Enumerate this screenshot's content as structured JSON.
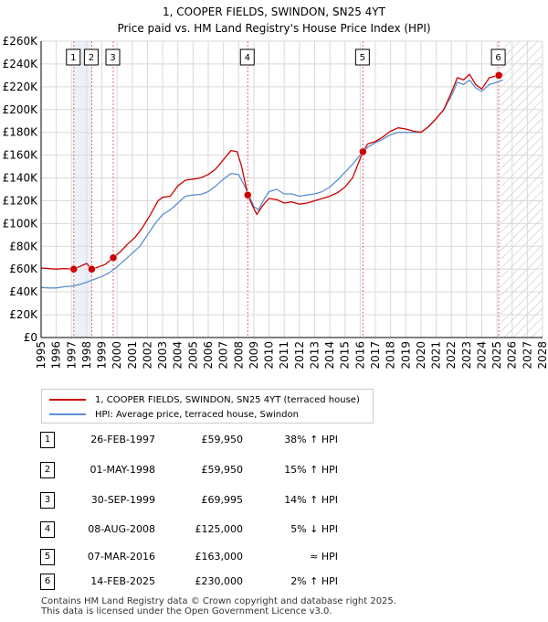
{
  "chart_data": {
    "type": "line",
    "title": "1, COOPER FIELDS, SWINDON, SN25 4YT",
    "subtitle": "Price paid vs. HM Land Registry's House Price Index (HPI)",
    "xlim": [
      1995,
      2028
    ],
    "ylim": [
      0,
      260000
    ],
    "x_ticks": [
      1995,
      1996,
      1997,
      1998,
      1999,
      2000,
      2001,
      2002,
      2003,
      2004,
      2005,
      2006,
      2007,
      2008,
      2009,
      2010,
      2011,
      2012,
      2013,
      2014,
      2015,
      2016,
      2017,
      2018,
      2019,
      2020,
      2021,
      2022,
      2023,
      2024,
      2025,
      2026,
      2027,
      2028
    ],
    "y_ticks": [
      0,
      20000,
      40000,
      60000,
      80000,
      100000,
      120000,
      140000,
      160000,
      180000,
      200000,
      220000,
      240000,
      260000
    ],
    "y_tick_labels": [
      "£0",
      "£20K",
      "£40K",
      "£60K",
      "£80K",
      "£100K",
      "£120K",
      "£140K",
      "£160K",
      "£180K",
      "£200K",
      "£220K",
      "£240K",
      "£260K"
    ],
    "future_start": 2025.25,
    "series": [
      {
        "name": "1, COOPER FIELDS, SWINDON, SN25 4YT (terraced house)",
        "color": "#cc0000",
        "points": [
          [
            1995.0,
            61000
          ],
          [
            1995.5,
            60500
          ],
          [
            1996.0,
            60000
          ],
          [
            1996.5,
            60500
          ],
          [
            1997.15,
            59950
          ],
          [
            1997.5,
            62000
          ],
          [
            1998.0,
            65000
          ],
          [
            1998.33,
            59950
          ],
          [
            1998.8,
            62000
          ],
          [
            1999.2,
            64000
          ],
          [
            1999.75,
            69995
          ],
          [
            2000.2,
            75000
          ],
          [
            2000.7,
            82000
          ],
          [
            2001.2,
            88000
          ],
          [
            2001.7,
            97000
          ],
          [
            2002.2,
            108000
          ],
          [
            2002.7,
            120000
          ],
          [
            2003.0,
            123000
          ],
          [
            2003.5,
            124000
          ],
          [
            2004.0,
            133000
          ],
          [
            2004.5,
            138000
          ],
          [
            2005.0,
            139000
          ],
          [
            2005.5,
            140000
          ],
          [
            2006.0,
            143000
          ],
          [
            2006.5,
            148000
          ],
          [
            2007.0,
            156000
          ],
          [
            2007.5,
            164000
          ],
          [
            2007.9,
            163000
          ],
          [
            2008.2,
            150000
          ],
          [
            2008.6,
            125000
          ],
          [
            2008.9,
            116000
          ],
          [
            2009.2,
            108000
          ],
          [
            2009.6,
            116000
          ],
          [
            2010.0,
            122000
          ],
          [
            2010.5,
            121000
          ],
          [
            2011.0,
            118000
          ],
          [
            2011.5,
            119000
          ],
          [
            2012.0,
            117000
          ],
          [
            2012.5,
            118000
          ],
          [
            2013.0,
            120000
          ],
          [
            2013.5,
            122000
          ],
          [
            2014.0,
            124000
          ],
          [
            2014.5,
            127000
          ],
          [
            2015.0,
            132000
          ],
          [
            2015.5,
            140000
          ],
          [
            2016.18,
            163000
          ],
          [
            2016.5,
            170000
          ],
          [
            2017.0,
            172000
          ],
          [
            2017.5,
            176000
          ],
          [
            2018.0,
            181000
          ],
          [
            2018.5,
            184000
          ],
          [
            2019.0,
            183000
          ],
          [
            2019.5,
            181000
          ],
          [
            2020.0,
            180000
          ],
          [
            2020.5,
            185000
          ],
          [
            2021.0,
            192000
          ],
          [
            2021.5,
            200000
          ],
          [
            2022.0,
            215000
          ],
          [
            2022.4,
            228000
          ],
          [
            2022.8,
            226000
          ],
          [
            2023.2,
            231000
          ],
          [
            2023.6,
            222000
          ],
          [
            2024.0,
            218000
          ],
          [
            2024.5,
            228000
          ],
          [
            2025.12,
            230000
          ],
          [
            2025.4,
            231000
          ]
        ]
      },
      {
        "name": "HPI: Average price, terraced house, Swindon",
        "color": "#5b8fd0",
        "points": [
          [
            1995.0,
            44000
          ],
          [
            1995.5,
            43500
          ],
          [
            1996.0,
            43500
          ],
          [
            1996.5,
            44500
          ],
          [
            1997.0,
            45000
          ],
          [
            1997.5,
            46500
          ],
          [
            1998.0,
            48500
          ],
          [
            1998.5,
            51000
          ],
          [
            1999.0,
            53500
          ],
          [
            1999.5,
            57000
          ],
          [
            2000.0,
            62000
          ],
          [
            2000.5,
            68000
          ],
          [
            2001.0,
            74000
          ],
          [
            2001.5,
            80000
          ],
          [
            2002.0,
            90000
          ],
          [
            2002.5,
            100000
          ],
          [
            2003.0,
            108000
          ],
          [
            2003.5,
            112000
          ],
          [
            2004.0,
            118000
          ],
          [
            2004.5,
            124000
          ],
          [
            2005.0,
            125000
          ],
          [
            2005.5,
            125500
          ],
          [
            2006.0,
            128000
          ],
          [
            2006.5,
            133000
          ],
          [
            2007.0,
            139000
          ],
          [
            2007.5,
            144000
          ],
          [
            2008.0,
            143000
          ],
          [
            2008.5,
            130000
          ],
          [
            2009.0,
            115000
          ],
          [
            2009.3,
            112000
          ],
          [
            2009.7,
            122000
          ],
          [
            2010.0,
            128000
          ],
          [
            2010.5,
            130000
          ],
          [
            2011.0,
            126000
          ],
          [
            2011.5,
            126000
          ],
          [
            2012.0,
            124000
          ],
          [
            2012.5,
            125000
          ],
          [
            2013.0,
            126000
          ],
          [
            2013.5,
            128000
          ],
          [
            2014.0,
            132000
          ],
          [
            2014.5,
            138000
          ],
          [
            2015.0,
            145000
          ],
          [
            2015.5,
            152000
          ],
          [
            2016.0,
            160000
          ],
          [
            2016.5,
            167000
          ],
          [
            2017.0,
            171000
          ],
          [
            2017.5,
            174000
          ],
          [
            2018.0,
            178000
          ],
          [
            2018.5,
            180000
          ],
          [
            2019.0,
            180000
          ],
          [
            2019.5,
            180000
          ],
          [
            2020.0,
            180000
          ],
          [
            2020.5,
            185000
          ],
          [
            2021.0,
            192000
          ],
          [
            2021.5,
            200000
          ],
          [
            2022.0,
            212000
          ],
          [
            2022.4,
            224000
          ],
          [
            2022.8,
            222000
          ],
          [
            2023.2,
            226000
          ],
          [
            2023.6,
            219000
          ],
          [
            2024.0,
            216000
          ],
          [
            2024.5,
            222000
          ],
          [
            2025.0,
            224000
          ],
          [
            2025.4,
            226000
          ]
        ]
      }
    ],
    "sales": [
      {
        "n": "1",
        "x": 1997.15,
        "y": 59950
      },
      {
        "n": "2",
        "x": 1998.33,
        "y": 59950
      },
      {
        "n": "3",
        "x": 1999.75,
        "y": 69995
      },
      {
        "n": "4",
        "x": 2008.6,
        "y": 125000
      },
      {
        "n": "5",
        "x": 2016.18,
        "y": 163000
      },
      {
        "n": "6",
        "x": 2025.12,
        "y": 230000
      }
    ]
  },
  "legend": {
    "price_paid": "1, COOPER FIELDS, SWINDON, SN25 4YT (terraced house)",
    "hpi": "HPI: Average price, terraced house, Swindon",
    "price_color": "#cc0000",
    "hpi_color": "#5b8fd0"
  },
  "transactions": [
    {
      "n": "1",
      "date": "26-FEB-1997",
      "price": "£59,950",
      "hpi": "38% ↑ HPI"
    },
    {
      "n": "2",
      "date": "01-MAY-1998",
      "price": "£59,950",
      "hpi": "15% ↑ HPI"
    },
    {
      "n": "3",
      "date": "30-SEP-1999",
      "price": "£69,995",
      "hpi": "14% ↑ HPI"
    },
    {
      "n": "4",
      "date": "08-AUG-2008",
      "price": "£125,000",
      "hpi": "5% ↓ HPI"
    },
    {
      "n": "5",
      "date": "07-MAR-2016",
      "price": "£163,000",
      "hpi": "≈ HPI"
    },
    {
      "n": "6",
      "date": "14-FEB-2025",
      "price": "£230,000",
      "hpi": "2% ↑ HPI"
    }
  ],
  "footer": {
    "line1": "Contains HM Land Registry data © Crown copyright and database right 2025.",
    "line2": "This data is licensed under the Open Government Licence v3.0."
  }
}
